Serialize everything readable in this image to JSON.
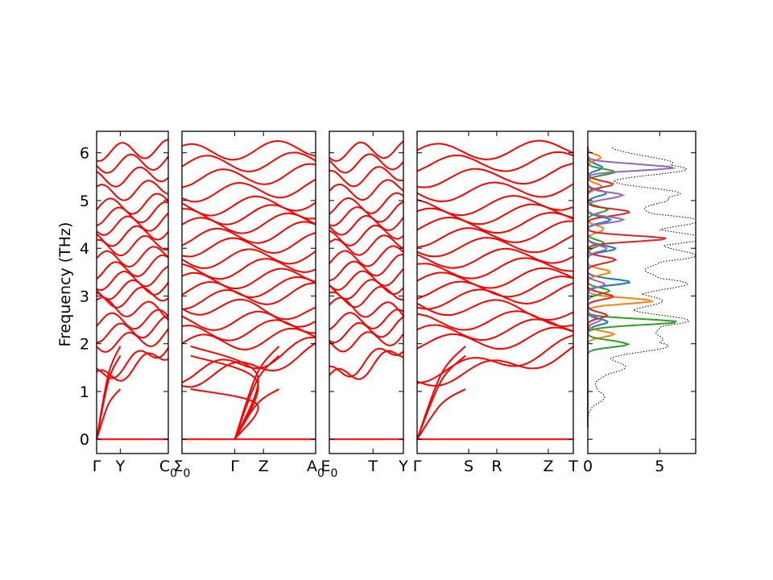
{
  "chart_data": {
    "type": "line",
    "ylabel": "Frequency (THz)",
    "ylim": [
      -0.3,
      6.45
    ],
    "yticks": [
      "0",
      "1",
      "2",
      "3",
      "4",
      "5",
      "6"
    ],
    "segments": [
      {
        "labels": [
          "Γ",
          "Y",
          "C$_0$"
        ],
        "label_pos": [
          0,
          0.33,
          1.0
        ]
      },
      {
        "labels": [
          "Σ$_0$",
          "Γ",
          "Z",
          "A$_0$"
        ],
        "label_pos": [
          0,
          0.395,
          0.61,
          1.0
        ]
      },
      {
        "labels": [
          "E$_0$",
          "T",
          "Y"
        ],
        "label_pos": [
          0,
          0.59,
          1.0
        ]
      },
      {
        "labels": [
          "Γ",
          "S",
          "R",
          "Z",
          "T"
        ],
        "label_pos": [
          0,
          0.33,
          0.51,
          0.84,
          1.0
        ]
      }
    ],
    "band_energies": [
      [
        0.0,
        0.0,
        0.0
      ],
      [
        1.25,
        1.6,
        1.85
      ],
      [
        1.35,
        1.75,
        2.0
      ],
      [
        2.0,
        2.05,
        2.2
      ],
      [
        2.2,
        2.3,
        2.4
      ],
      [
        2.45,
        2.5,
        2.55
      ],
      [
        2.8,
        2.7,
        2.65
      ],
      [
        2.9,
        3.0,
        3.1
      ],
      [
        3.1,
        3.15,
        3.25
      ],
      [
        3.3,
        3.35,
        3.45
      ],
      [
        3.5,
        3.6,
        3.7
      ],
      [
        3.75,
        3.8,
        3.9
      ],
      [
        4.0,
        4.05,
        4.15
      ],
      [
        4.2,
        4.3,
        4.4
      ],
      [
        4.45,
        4.5,
        4.6
      ],
      [
        4.65,
        4.7,
        4.8
      ],
      [
        4.85,
        4.9,
        5.0
      ],
      [
        5.15,
        5.2,
        5.3
      ],
      [
        5.45,
        5.5,
        5.6
      ],
      [
        5.75,
        5.8,
        5.85
      ],
      [
        6.0,
        6.08,
        6.1
      ]
    ],
    "dos": {
      "xlim": [
        0,
        7.5
      ],
      "xticks": [
        "0",
        "5"
      ],
      "series": [
        {
          "color": "#1f77b4",
          "peaks": [
            [
              2.45,
              1.5
            ],
            [
              3.3,
              3.2
            ],
            [
              4.0,
              2.2
            ],
            [
              4.6,
              1.6
            ],
            [
              5.15,
              1.4
            ],
            [
              5.7,
              1.2
            ]
          ]
        },
        {
          "color": "#ff7f0e",
          "peaks": [
            [
              2.2,
              1.8
            ],
            [
              2.9,
              4.5
            ],
            [
              3.5,
              1.6
            ],
            [
              4.4,
              1.4
            ],
            [
              5.3,
              1.0
            ],
            [
              5.9,
              0.9
            ]
          ]
        },
        {
          "color": "#2ca02c",
          "peaks": [
            [
              2.0,
              3.4
            ],
            [
              2.45,
              6.7
            ],
            [
              3.1,
              1.7
            ],
            [
              4.1,
              1.3
            ],
            [
              4.8,
              1.5
            ],
            [
              5.6,
              1.9
            ]
          ]
        },
        {
          "color": "#d62728",
          "peaks": [
            [
              2.6,
              1.4
            ],
            [
              3.0,
              2.1
            ],
            [
              3.75,
              2.3
            ],
            [
              4.2,
              5.5
            ],
            [
              4.75,
              3.6
            ],
            [
              5.35,
              2.0
            ]
          ]
        },
        {
          "color": "#9467bd",
          "peaks": [
            [
              2.5,
              0.9
            ],
            [
              3.25,
              1.2
            ],
            [
              4.0,
              1.5
            ],
            [
              4.6,
              2.5
            ],
            [
              5.1,
              2.9
            ],
            [
              5.7,
              7.0
            ]
          ]
        }
      ],
      "total_peaks": [
        [
          0.9,
          1.2
        ],
        [
          1.5,
          2.6
        ],
        [
          2.0,
          6.4
        ],
        [
          2.45,
          7.2
        ],
        [
          2.9,
          4.9
        ],
        [
          3.3,
          7.0
        ],
        [
          3.8,
          7.4
        ],
        [
          4.2,
          7.6
        ],
        [
          4.6,
          7.5
        ],
        [
          5.1,
          7.3
        ],
        [
          5.7,
          7.6
        ],
        [
          6.05,
          2.0
        ]
      ]
    }
  }
}
